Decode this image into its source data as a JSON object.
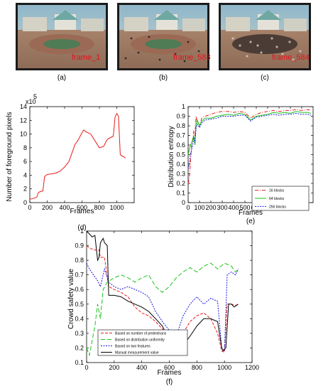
{
  "frames": [
    {
      "label": "frame_1",
      "panel": "(a)"
    },
    {
      "label": "frame_583",
      "panel": "(b)"
    },
    {
      "label": "frame_584",
      "panel": "(c)"
    }
  ],
  "chart_data": [
    {
      "type": "line",
      "panel": "(d)",
      "xlabel": "Frames",
      "ylabel": "Number of foreground pixels",
      "y_multiplier_base": "x10",
      "y_multiplier_exp": "5",
      "xlim": [
        0,
        1200
      ],
      "ylim": [
        0,
        14
      ],
      "xticks": [
        0,
        200,
        400,
        600,
        800,
        1000
      ],
      "yticks": [
        0,
        2,
        4,
        6,
        8,
        10,
        12,
        14
      ],
      "series": [
        {
          "color": "#e81c1c",
          "x": [
            0,
            40,
            80,
            100,
            120,
            150,
            170,
            190,
            200,
            250,
            300,
            350,
            400,
            450,
            500,
            520,
            550,
            600,
            620,
            650,
            700,
            750,
            800,
            850,
            880,
            900,
            960,
            980,
            1000,
            1020,
            1040,
            1060,
            1080,
            1100
          ],
          "y": [
            0.5,
            0.6,
            0.8,
            1.5,
            1.6,
            1.7,
            3.8,
            4.0,
            4.1,
            4.2,
            4.3,
            4.6,
            5.2,
            6.0,
            7.8,
            8.5,
            9.0,
            10.2,
            10.6,
            10.3,
            10.0,
            9.0,
            8.0,
            8.2,
            9.0,
            9.3,
            9.7,
            12.5,
            13.0,
            12.6,
            7.0,
            6.8,
            6.7,
            6.5
          ]
        }
      ]
    },
    {
      "type": "line",
      "panel": "(e)",
      "xlabel": "Frames",
      "ylabel": "Distribution entropy",
      "xlim": [
        0,
        1100
      ],
      "ylim": [
        0,
        1
      ],
      "xticks": [
        0,
        100,
        200,
        300,
        400,
        500,
        600,
        700,
        800,
        900,
        1000
      ],
      "yticks": [
        0,
        0.1,
        0.2,
        0.3,
        0.4,
        0.5,
        0.6,
        0.7,
        0.8,
        0.9,
        1
      ],
      "legend_position": "bottom-right",
      "series": [
        {
          "name": "16    blocks",
          "color": "#e81c1c",
          "dash": "5,2,1,2",
          "x": [
            0,
            10,
            20,
            30,
            40,
            50,
            60,
            70,
            80,
            100,
            120,
            150,
            200,
            250,
            300,
            350,
            400,
            450,
            500,
            550,
            600,
            650,
            700,
            750,
            800,
            850,
            900,
            950,
            1000,
            1050,
            1080
          ],
          "y": [
            0.2,
            0.25,
            0.4,
            0.6,
            0.65,
            0.75,
            0.7,
            0.9,
            0.85,
            0.8,
            0.88,
            0.9,
            0.92,
            0.94,
            0.95,
            0.95,
            0.94,
            0.95,
            0.94,
            0.88,
            0.92,
            0.94,
            0.95,
            0.96,
            0.95,
            0.96,
            0.96,
            0.97,
            0.96,
            0.97,
            0.96
          ]
        },
        {
          "name": "64    blocks",
          "color": "#19c419",
          "dash": "",
          "x": [
            0,
            10,
            20,
            30,
            40,
            50,
            60,
            70,
            80,
            100,
            120,
            150,
            200,
            250,
            300,
            350,
            400,
            450,
            500,
            550,
            600,
            650,
            700,
            750,
            800,
            850,
            900,
            950,
            1000,
            1050,
            1080
          ],
          "y": [
            0.5,
            0.55,
            0.6,
            0.62,
            0.66,
            0.7,
            0.6,
            0.82,
            0.86,
            0.8,
            0.85,
            0.88,
            0.88,
            0.9,
            0.91,
            0.92,
            0.91,
            0.93,
            0.92,
            0.86,
            0.9,
            0.91,
            0.92,
            0.94,
            0.93,
            0.94,
            0.93,
            0.95,
            0.94,
            0.94,
            0.93
          ]
        },
        {
          "name": "256 blocks",
          "color": "#1a1ae0",
          "dash": "2,1.5",
          "x": [
            0,
            10,
            20,
            30,
            40,
            50,
            60,
            70,
            80,
            100,
            120,
            150,
            200,
            250,
            300,
            350,
            400,
            450,
            500,
            550,
            600,
            650,
            700,
            750,
            800,
            850,
            900,
            950,
            1000,
            1050,
            1080
          ],
          "y": [
            0.35,
            0.4,
            0.5,
            0.55,
            0.6,
            0.68,
            0.62,
            0.78,
            0.82,
            0.78,
            0.83,
            0.86,
            0.87,
            0.88,
            0.9,
            0.9,
            0.9,
            0.91,
            0.91,
            0.85,
            0.89,
            0.9,
            0.91,
            0.92,
            0.91,
            0.92,
            0.92,
            0.93,
            0.92,
            0.92,
            0.91
          ]
        }
      ]
    },
    {
      "type": "line",
      "panel": "(f)",
      "xlabel": "Frames",
      "ylabel": "Crowd safety value",
      "xlim": [
        0,
        1200
      ],
      "ylim": [
        0.1,
        1
      ],
      "xticks": [
        0,
        200,
        400,
        600,
        800,
        1000,
        1200
      ],
      "yticks": [
        0.1,
        0.2,
        0.3,
        0.4,
        0.5,
        0.6,
        0.7,
        0.8,
        0.9,
        1
      ],
      "legend_position": "bottom-left",
      "series": [
        {
          "name": "Based on number of pedestrians",
          "color": "#e81c1c",
          "dash": "4,2",
          "x": [
            0,
            30,
            60,
            90,
            100,
            130,
            160,
            200,
            250,
            300,
            350,
            400,
            450,
            500,
            550,
            600,
            650,
            700,
            750,
            800,
            850,
            900,
            950,
            980,
            1000,
            1020,
            1050,
            1080,
            1100
          ],
          "y": [
            0.9,
            0.88,
            0.87,
            0.87,
            0.82,
            0.82,
            0.62,
            0.6,
            0.58,
            0.55,
            0.48,
            0.44,
            0.42,
            0.38,
            0.33,
            0.28,
            0.25,
            0.3,
            0.38,
            0.42,
            0.44,
            0.4,
            0.3,
            0.18,
            0.17,
            0.5,
            0.5,
            0.49,
            0.5
          ]
        },
        {
          "name": "Based on distribution uniformity",
          "color": "#19c419",
          "dash": "6,3",
          "x": [
            0,
            20,
            40,
            60,
            80,
            100,
            120,
            150,
            200,
            250,
            300,
            350,
            400,
            450,
            500,
            550,
            600,
            650,
            700,
            750,
            800,
            850,
            900,
            950,
            1000,
            1050,
            1080,
            1100
          ],
          "y": [
            0.2,
            0.15,
            0.25,
            0.35,
            0.5,
            0.4,
            0.6,
            0.65,
            0.68,
            0.7,
            0.68,
            0.65,
            0.68,
            0.7,
            0.62,
            0.58,
            0.62,
            0.68,
            0.72,
            0.75,
            0.72,
            0.76,
            0.78,
            0.74,
            0.78,
            0.76,
            0.72,
            0.74
          ]
        },
        {
          "name": "Based on two features",
          "color": "#1a1ae0",
          "dash": "2,1.5",
          "x": [
            0,
            20,
            50,
            80,
            100,
            130,
            160,
            200,
            250,
            300,
            350,
            400,
            450,
            500,
            550,
            600,
            650,
            700,
            750,
            800,
            850,
            900,
            950,
            980,
            1000,
            1020,
            1050,
            1080,
            1100
          ],
          "y": [
            0.78,
            0.74,
            0.7,
            0.66,
            0.62,
            0.74,
            0.65,
            0.62,
            0.6,
            0.62,
            0.6,
            0.58,
            0.55,
            0.45,
            0.38,
            0.32,
            0.28,
            0.42,
            0.5,
            0.55,
            0.5,
            0.54,
            0.52,
            0.2,
            0.18,
            0.7,
            0.72,
            0.7,
            0.74
          ]
        },
        {
          "name": "Manual measurement value",
          "color": "#000000",
          "dash": "",
          "x": [
            0,
            20,
            40,
            60,
            80,
            90,
            100,
            120,
            130,
            150,
            160,
            200,
            250,
            300,
            350,
            400,
            450,
            500,
            550,
            600,
            650,
            700,
            750,
            800,
            850,
            900,
            950,
            980,
            990,
            1010,
            1030,
            1050,
            1070,
            1100
          ],
          "y": [
            1.0,
            0.98,
            0.96,
            0.97,
            0.8,
            0.82,
            0.92,
            0.95,
            0.92,
            0.9,
            0.56,
            0.56,
            0.55,
            0.52,
            0.5,
            0.48,
            0.45,
            0.4,
            0.35,
            0.25,
            0.2,
            0.22,
            0.28,
            0.35,
            0.4,
            0.4,
            0.38,
            0.2,
            0.18,
            0.2,
            0.5,
            0.5,
            0.48,
            0.5
          ]
        }
      ]
    }
  ]
}
